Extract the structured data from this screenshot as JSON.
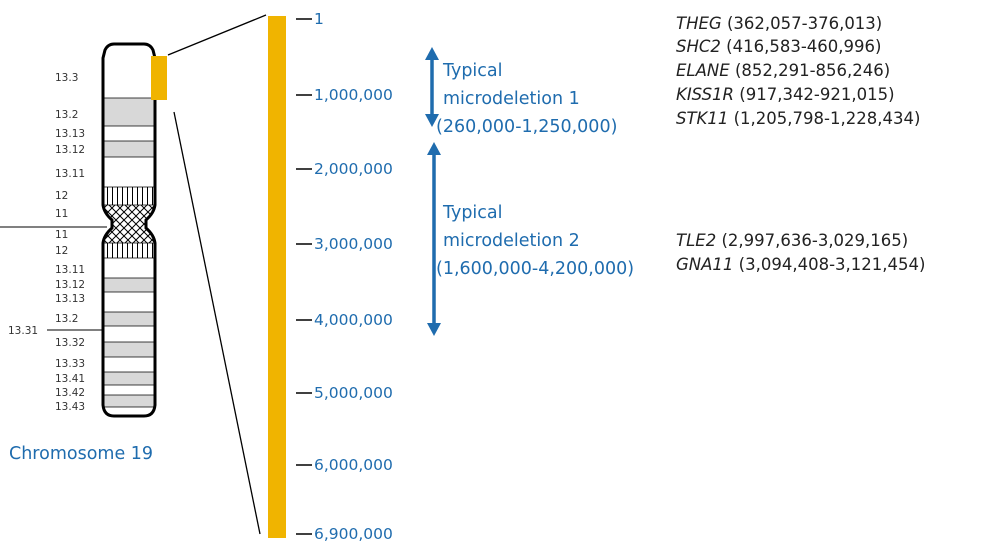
{
  "chromosome": {
    "title": "Chromosome 19",
    "p_arm_bands": [
      "13.3",
      "13.2",
      "13.13",
      "13.12",
      "13.11",
      "12",
      "11"
    ],
    "q_arm_bands": [
      "11",
      "12",
      "13.11",
      "13.12",
      "13.13",
      "13.2",
      "13.31",
      "13.32",
      "13.33",
      "13.41",
      "13.42",
      "13.43"
    ]
  },
  "scale": {
    "ticks": [
      "1",
      "1,000,000",
      "2,000,000",
      "3,000,000",
      "4,000,000",
      "5,000,000",
      "6,000,000",
      "6,900,000"
    ]
  },
  "microdeletions": [
    {
      "label_line1": "Typical",
      "label_line2": "microdeletion 1",
      "range": "(260,000-1,250,000)"
    },
    {
      "label_line1": "Typical",
      "label_line2": "microdeletion 2",
      "range": "(1,600,000-4,200,000)"
    }
  ],
  "genes": [
    {
      "name": "THEG",
      "range": "(362,057-376,013)"
    },
    {
      "name": "SHC2",
      "range": "(416,583-460,996)"
    },
    {
      "name": "ELANE",
      "range": "(852,291-856,246)"
    },
    {
      "name": "KISS1R",
      "range": "(917,342-921,015)"
    },
    {
      "name": "STK11",
      "range": "(1,205,798-1,228,434)"
    },
    {
      "name": "TLE2",
      "range": "(2,997,636-3,029,165)"
    },
    {
      "name": "GNA11",
      "range": "(3,094,408-3,121,454)"
    }
  ],
  "colors": {
    "highlight": "#f0b400",
    "accent_blue": "#1f6cae",
    "band_gray": "#d8d8d8"
  }
}
